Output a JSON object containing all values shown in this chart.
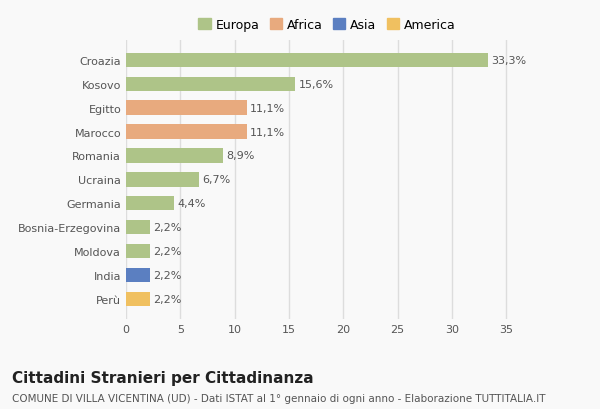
{
  "categories": [
    "Croazia",
    "Kosovo",
    "Egitto",
    "Marocco",
    "Romania",
    "Ucraina",
    "Germania",
    "Bosnia-Erzegovina",
    "Moldova",
    "India",
    "Perù"
  ],
  "values": [
    33.3,
    15.6,
    11.1,
    11.1,
    8.9,
    6.7,
    4.4,
    2.2,
    2.2,
    2.2,
    2.2
  ],
  "labels": [
    "33,3%",
    "15,6%",
    "11,1%",
    "11,1%",
    "8,9%",
    "6,7%",
    "4,4%",
    "2,2%",
    "2,2%",
    "2,2%",
    "2,2%"
  ],
  "colors": [
    "#aec488",
    "#aec488",
    "#e8aa7e",
    "#e8aa7e",
    "#aec488",
    "#aec488",
    "#aec488",
    "#aec488",
    "#aec488",
    "#5b7fc1",
    "#f0c060"
  ],
  "legend_labels": [
    "Europa",
    "Africa",
    "Asia",
    "America"
  ],
  "legend_colors": [
    "#aec488",
    "#e8aa7e",
    "#5b7fc1",
    "#f0c060"
  ],
  "title": "Cittadini Stranieri per Cittadinanza",
  "subtitle": "COMUNE DI VILLA VICENTINA (UD) - Dati ISTAT al 1° gennaio di ogni anno - Elaborazione TUTTITALIA.IT",
  "xlim": [
    0,
    37
  ],
  "xticks": [
    0,
    5,
    10,
    15,
    20,
    25,
    30,
    35
  ],
  "background_color": "#f9f9f9",
  "grid_color": "#dddddd",
  "bar_height": 0.6,
  "title_fontsize": 11,
  "subtitle_fontsize": 7.5,
  "label_fontsize": 8,
  "tick_fontsize": 8,
  "legend_fontsize": 9
}
